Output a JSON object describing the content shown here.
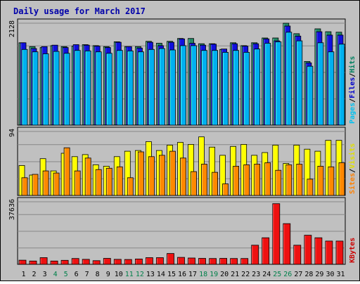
{
  "title": "Daily usage for March 2017",
  "chart_data": [
    {
      "type": "bar",
      "panel": "hits-files-pages",
      "ymax_label": "2128",
      "ylim": [
        0,
        2128
      ],
      "legend": [
        {
          "text": "Pages",
          "color": "#00c0f0"
        },
        {
          "text": "/",
          "color": "#000000"
        },
        {
          "text": "Files",
          "color": "#0000cc"
        },
        {
          "text": "/",
          "color": "#000000"
        },
        {
          "text": "Hits",
          "color": "#008060"
        }
      ],
      "series": [
        {
          "name": "Hits",
          "color": "#228866",
          "values": [
            1720,
            1640,
            1620,
            1660,
            1640,
            1650,
            1680,
            1660,
            1640,
            1740,
            1640,
            1640,
            1750,
            1710,
            1750,
            1810,
            1810,
            1700,
            1700,
            1580,
            1720,
            1660,
            1720,
            1820,
            1820,
            2128,
            1910,
            1330,
            2010,
            1950,
            1940
          ]
        },
        {
          "name": "Files",
          "color": "#1010dd",
          "values": [
            1720,
            1600,
            1640,
            1670,
            1620,
            1680,
            1670,
            1650,
            1620,
            1730,
            1640,
            1610,
            1730,
            1660,
            1730,
            1800,
            1710,
            1670,
            1690,
            1590,
            1700,
            1650,
            1700,
            1800,
            1760,
            2070,
            1860,
            1300,
            1950,
            1880,
            1880
          ]
        },
        {
          "name": "Pages",
          "color": "#00b0f0",
          "values": [
            1580,
            1530,
            1490,
            1540,
            1500,
            1560,
            1550,
            1530,
            1500,
            1560,
            1550,
            1530,
            1580,
            1600,
            1570,
            1660,
            1660,
            1560,
            1560,
            1520,
            1560,
            1520,
            1590,
            1710,
            1740,
            1940,
            1760,
            1230,
            1720,
            1530,
            1690
          ]
        }
      ]
    },
    {
      "type": "bar",
      "panel": "visits-sites",
      "ymax_label": "94",
      "ylim": [
        0,
        94
      ],
      "legend": [
        {
          "text": "Sites",
          "color": "#ff8000"
        },
        {
          "text": "/",
          "color": "#000000"
        },
        {
          "text": "Visits",
          "color": "#e0e000"
        }
      ],
      "series": [
        {
          "name": "Visits",
          "color": "#ffff00",
          "values": [
            44,
            30,
            54,
            36,
            62,
            57,
            60,
            45,
            43,
            57,
            65,
            66,
            79,
            66,
            74,
            78,
            75,
            86,
            71,
            59,
            72,
            75,
            59,
            63,
            74,
            47,
            74,
            68,
            65,
            81,
            81
          ]
        },
        {
          "name": "Sites",
          "color": "#ff8800",
          "values": [
            26,
            31,
            36,
            33,
            70,
            36,
            55,
            38,
            40,
            42,
            26,
            64,
            57,
            59,
            65,
            55,
            35,
            46,
            34,
            17,
            43,
            45,
            46,
            48,
            37,
            45,
            46,
            24,
            43,
            42,
            48
          ]
        }
      ]
    },
    {
      "type": "bar",
      "panel": "kbytes",
      "ymax_label": "37636",
      "ylim": [
        0,
        37636
      ],
      "legend": [
        {
          "text": "KBytes",
          "color": "#cc0000"
        }
      ],
      "series": [
        {
          "name": "KBytes",
          "color": "#ee1111",
          "values": [
            2500,
            2000,
            4000,
            2000,
            2400,
            3500,
            3000,
            2200,
            3600,
            3000,
            2900,
            3200,
            4000,
            4000,
            6500,
            4200,
            3800,
            3600,
            3500,
            3600,
            3500,
            3500,
            11500,
            16000,
            36500,
            24500,
            11500,
            17500,
            16000,
            14000,
            14000
          ]
        }
      ]
    }
  ],
  "days": [
    "1",
    "2",
    "3",
    "4",
    "5",
    "6",
    "7",
    "8",
    "9",
    "10",
    "11",
    "12",
    "13",
    "14",
    "15",
    "16",
    "17",
    "18",
    "19",
    "20",
    "21",
    "22",
    "23",
    "24",
    "25",
    "26",
    "27",
    "28",
    "29",
    "30",
    "31"
  ],
  "weekend_days": [
    "4",
    "5",
    "11",
    "12",
    "18",
    "19",
    "25",
    "26"
  ],
  "day_color": "#000000",
  "weekend_color": "#00804a"
}
